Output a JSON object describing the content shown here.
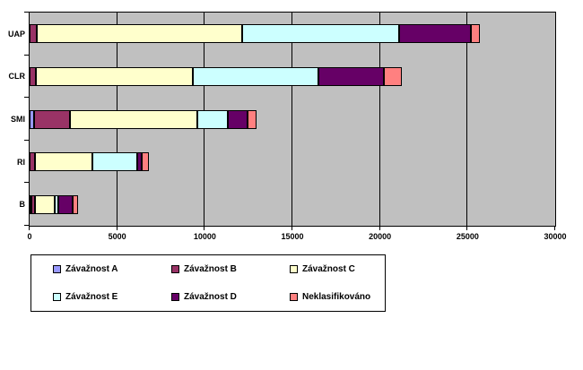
{
  "chart_data": {
    "type": "bar",
    "orientation": "horizontal-stacked",
    "title": "",
    "xlabel": "",
    "ylabel": "",
    "categories": [
      "UAP",
      "CLR",
      "SMI",
      "RI",
      "B"
    ],
    "series": [
      {
        "name": "Závažnost A",
        "color": "#9999FF",
        "values": [
          0,
          0,
          250,
          0,
          100
        ]
      },
      {
        "name": "Závažnost B",
        "color": "#993366",
        "values": [
          400,
          350,
          2050,
          300,
          200
        ]
      },
      {
        "name": "Závažnost C",
        "color": "#FFFFCC",
        "values": [
          11700,
          8950,
          7250,
          3300,
          1150
        ]
      },
      {
        "name": "Závažnost E",
        "color": "#CCFFFF",
        "values": [
          8950,
          7150,
          1750,
          2550,
          200
        ]
      },
      {
        "name": "Závažnost D",
        "color": "#660066",
        "values": [
          4100,
          3750,
          1150,
          250,
          800
        ]
      },
      {
        "name": "Neklasifikováno",
        "color": "#FF8080",
        "values": [
          500,
          1000,
          500,
          400,
          300
        ]
      }
    ],
    "xlim": [
      0,
      30000
    ],
    "xticks": [
      0,
      5000,
      10000,
      15000,
      20000,
      25000,
      30000
    ],
    "xtick_labels": [
      "0",
      "5000",
      "10000",
      "15000",
      "20000",
      "25000",
      "30000"
    ],
    "grid": true,
    "plot_background": "#C0C0C0",
    "gridline_color": "#000000",
    "legend_position": "bottom"
  }
}
